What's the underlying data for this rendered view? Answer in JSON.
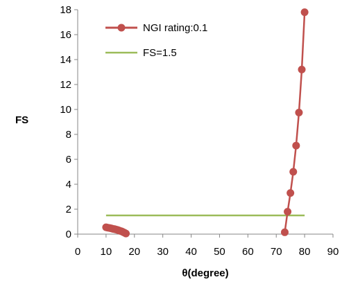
{
  "chart_data": {
    "type": "scatter",
    "title": "",
    "xlabel": "θ(degree)",
    "ylabel": "FS",
    "xlim": [
      0,
      90
    ],
    "ylim": [
      0,
      18
    ],
    "x_ticks": [
      0,
      10,
      20,
      30,
      40,
      50,
      60,
      70,
      80,
      90
    ],
    "y_ticks": [
      0,
      2,
      4,
      6,
      8,
      10,
      12,
      14,
      16,
      18
    ],
    "grid": false,
    "legend_position": "top-center",
    "series": [
      {
        "name": "NGI rating:0.1",
        "style": "line-with-markers",
        "color": "#c0504d",
        "segments": [
          [
            {
              "x": 10,
              "y": 0.55
            },
            {
              "x": 10.5,
              "y": 0.52
            },
            {
              "x": 11,
              "y": 0.5
            },
            {
              "x": 11.5,
              "y": 0.48
            },
            {
              "x": 12,
              "y": 0.45
            },
            {
              "x": 12.5,
              "y": 0.42
            },
            {
              "x": 13,
              "y": 0.4
            },
            {
              "x": 13.5,
              "y": 0.37
            },
            {
              "x": 14,
              "y": 0.34
            },
            {
              "x": 14.5,
              "y": 0.3
            },
            {
              "x": 15,
              "y": 0.26
            },
            {
              "x": 15.5,
              "y": 0.22
            },
            {
              "x": 16,
              "y": 0.17
            },
            {
              "x": 16.5,
              "y": 0.11
            },
            {
              "x": 17,
              "y": 0.05
            }
          ],
          [
            {
              "x": 73,
              "y": 0.15
            },
            {
              "x": 74,
              "y": 1.8
            },
            {
              "x": 75,
              "y": 3.3
            },
            {
              "x": 76,
              "y": 5.0
            },
            {
              "x": 77,
              "y": 7.1
            },
            {
              "x": 78,
              "y": 9.75
            },
            {
              "x": 79,
              "y": 13.2
            },
            {
              "x": 80,
              "y": 17.8
            }
          ]
        ]
      },
      {
        "name": "FS=1.5",
        "style": "line",
        "color": "#9bbb59",
        "points": [
          {
            "x": 10,
            "y": 1.5
          },
          {
            "x": 80,
            "y": 1.5
          }
        ]
      }
    ]
  }
}
